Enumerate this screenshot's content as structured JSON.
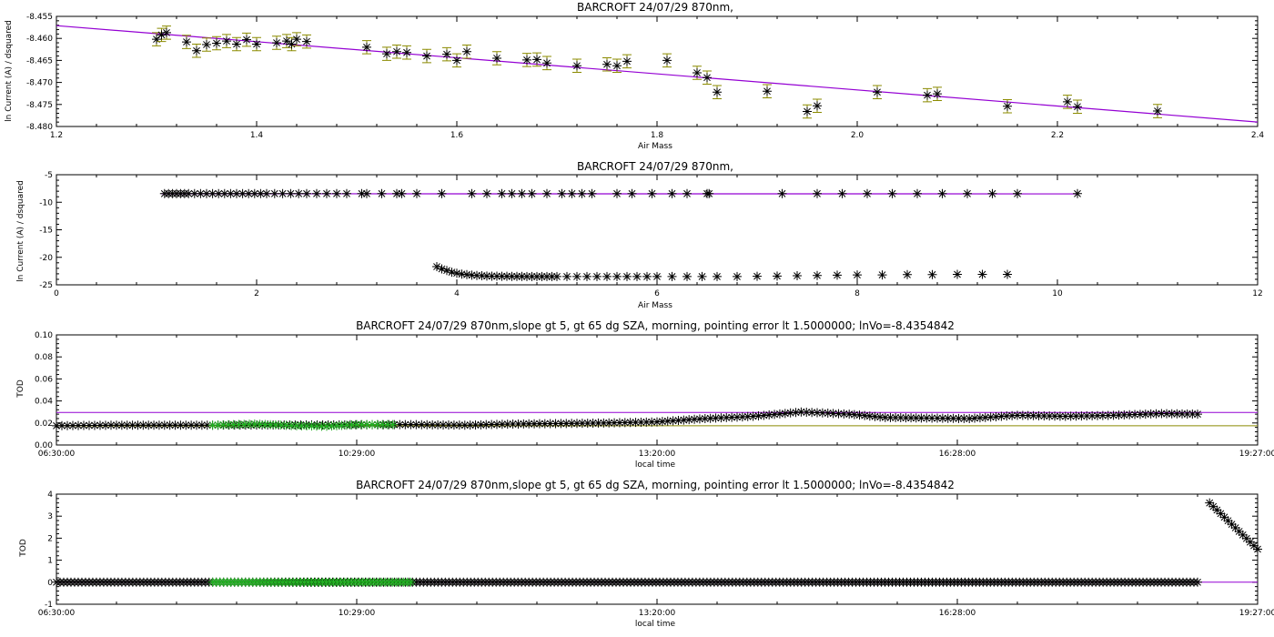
{
  "colors": {
    "axis": "#000000",
    "fit_line": "#9400d3",
    "error_bar": "#8b8b00",
    "marker": "#000000",
    "marker_green": "#22b022"
  },
  "chart_data": [
    {
      "type": "scatter",
      "title": "BARCROFT 24/07/29 870nm,",
      "xlabel": "Air Mass",
      "ylabel": "ln Current (A) / dsquared",
      "xlim": [
        1.2,
        2.4
      ],
      "ylim": [
        -8.48,
        -8.455
      ],
      "x_ticks": [
        1.2,
        1.4,
        1.6,
        1.8,
        2.0,
        2.2,
        2.4
      ],
      "x_tick_labels": [
        "1.2",
        "1.4",
        "1.6",
        "1.8",
        "2.0",
        "2.2",
        "2.4"
      ],
      "y_ticks": [
        -8.48,
        -8.475,
        -8.47,
        -8.465,
        -8.46,
        -8.455
      ],
      "y_tick_labels": [
        "-8.480",
        "-8.475",
        "-8.470",
        "-8.465",
        "-8.460",
        "-8.455"
      ],
      "fit_line": {
        "x": [
          1.2,
          2.4
        ],
        "y": [
          -8.4571,
          -8.479
        ]
      },
      "series": [
        {
          "marker": "asterisk",
          "error": 0.0015,
          "x": [
            1.3,
            1.305,
            1.31,
            1.33,
            1.34,
            1.35,
            1.36,
            1.37,
            1.38,
            1.39,
            1.4,
            1.42,
            1.43,
            1.435,
            1.44,
            1.45,
            1.51,
            1.53,
            1.54,
            1.55,
            1.57,
            1.59,
            1.6,
            1.61,
            1.64,
            1.67,
            1.68,
            1.69,
            1.72,
            1.75,
            1.76,
            1.77,
            1.81,
            1.84,
            1.85,
            1.86,
            1.91,
            1.95,
            1.96,
            2.02,
            2.07,
            2.08,
            2.15,
            2.21,
            2.22,
            2.3
          ],
          "y": [
            -8.4602,
            -8.4592,
            -8.4587,
            -8.4608,
            -8.4628,
            -8.4614,
            -8.4611,
            -8.4606,
            -8.4613,
            -8.4603,
            -8.4613,
            -8.461,
            -8.4606,
            -8.4613,
            -8.4602,
            -8.4607,
            -8.462,
            -8.4635,
            -8.463,
            -8.4632,
            -8.464,
            -8.4636,
            -8.465,
            -8.463,
            -8.4645,
            -8.4649,
            -8.4648,
            -8.4656,
            -8.4662,
            -8.4659,
            -8.4662,
            -8.4652,
            -8.465,
            -8.4678,
            -8.4689,
            -8.4722,
            -8.472,
            -8.4766,
            -8.4753,
            -8.4722,
            -8.4729,
            -8.4726,
            -8.4754,
            -8.4744,
            -8.4755,
            -8.4765
          ]
        }
      ]
    },
    {
      "type": "scatter",
      "title": "BARCROFT 24/07/29 870nm,",
      "xlabel": "Air Mass",
      "ylabel": "ln Current (A) / dsquared",
      "xlim": [
        0,
        12
      ],
      "ylim": [
        -25,
        -5
      ],
      "x_ticks": [
        0,
        2,
        4,
        6,
        8,
        10,
        12
      ],
      "x_tick_labels": [
        "0",
        "2",
        "4",
        "6",
        "8",
        "10",
        "12"
      ],
      "y_ticks": [
        -25,
        -20,
        -15,
        -10,
        -5
      ],
      "y_tick_labels": [
        "-25",
        "-20",
        "-15",
        "-10",
        "-5"
      ],
      "fit_line": {
        "x": [
          1.05,
          10.2
        ],
        "y": [
          -8.46,
          -8.48
        ]
      },
      "series": [
        {
          "marker": "asterisk",
          "x": [
            1.08,
            1.12,
            1.16,
            1.2,
            1.24,
            1.28,
            1.32,
            1.38,
            1.44,
            1.5,
            1.56,
            1.62,
            1.68,
            1.74,
            1.8,
            1.86,
            1.92,
            1.98,
            2.04,
            2.1,
            2.18,
            2.26,
            2.34,
            2.42,
            2.5,
            2.6,
            2.7,
            2.8,
            2.9,
            3.05,
            3.1,
            3.25,
            3.4,
            3.45,
            3.6,
            3.85,
            4.15,
            4.3,
            4.45,
            4.55,
            4.65,
            4.75,
            4.9,
            5.05,
            5.15,
            5.25,
            5.35,
            5.6,
            5.75,
            5.95,
            6.15,
            6.3,
            6.5,
            6.52,
            7.25,
            7.6,
            7.85,
            8.1,
            8.35,
            8.6,
            8.85,
            9.1,
            9.35,
            9.6,
            10.2
          ],
          "y": [
            -8.44,
            -8.44,
            -8.44,
            -8.44,
            -8.44,
            -8.44,
            -8.44,
            -8.44,
            -8.44,
            -8.44,
            -8.44,
            -8.44,
            -8.44,
            -8.44,
            -8.44,
            -8.44,
            -8.44,
            -8.44,
            -8.44,
            -8.44,
            -8.44,
            -8.44,
            -8.44,
            -8.44,
            -8.44,
            -8.44,
            -8.44,
            -8.44,
            -8.44,
            -8.44,
            -8.44,
            -8.44,
            -8.44,
            -8.44,
            -8.44,
            -8.44,
            -8.44,
            -8.44,
            -8.44,
            -8.44,
            -8.44,
            -8.44,
            -8.44,
            -8.44,
            -8.44,
            -8.44,
            -8.44,
            -8.44,
            -8.44,
            -8.44,
            -8.44,
            -8.44,
            -8.44,
            -8.44,
            -8.44,
            -8.44,
            -8.44,
            -8.44,
            -8.44,
            -8.44,
            -8.44,
            -8.44,
            -8.44,
            -8.44,
            -8.44
          ]
        },
        {
          "marker": "asterisk",
          "x": [
            3.8,
            3.85,
            3.9,
            3.95,
            4.0,
            4.05,
            4.1,
            4.15,
            4.2,
            4.25,
            4.3,
            4.35,
            4.4,
            4.45,
            4.5,
            4.55,
            4.6,
            4.65,
            4.7,
            4.75,
            4.8,
            4.85,
            4.9,
            4.95,
            5.0,
            5.1,
            5.2,
            5.3,
            5.4,
            5.5,
            5.6,
            5.7,
            5.8,
            5.9,
            6.0,
            6.15,
            6.3,
            6.45,
            6.6,
            6.8,
            7.0,
            7.2,
            7.4,
            7.6,
            7.8,
            8.0,
            8.25,
            8.5,
            8.75,
            9.0,
            9.25,
            9.5
          ],
          "y": [
            -21.7,
            -22.1,
            -22.4,
            -22.7,
            -22.9,
            -23.05,
            -23.15,
            -23.25,
            -23.3,
            -23.35,
            -23.4,
            -23.42,
            -23.44,
            -23.45,
            -23.46,
            -23.47,
            -23.48,
            -23.48,
            -23.49,
            -23.49,
            -23.5,
            -23.5,
            -23.5,
            -23.5,
            -23.5,
            -23.5,
            -23.5,
            -23.5,
            -23.5,
            -23.5,
            -23.5,
            -23.5,
            -23.5,
            -23.5,
            -23.5,
            -23.5,
            -23.5,
            -23.5,
            -23.5,
            -23.5,
            -23.45,
            -23.4,
            -23.35,
            -23.3,
            -23.25,
            -23.2,
            -23.2,
            -23.15,
            -23.15,
            -23.1,
            -23.1,
            -23.1
          ]
        }
      ]
    },
    {
      "type": "scatter",
      "title": "BARCROFT 24/07/29 870nm,slope gt 5, gt 65 dg SZA, morning, pointing error lt 1.5000000; lnVo=-8.4354842",
      "xlabel": "local time",
      "ylabel": "TOD",
      "xlim": [
        0,
        1
      ],
      "ylim": [
        0.0,
        0.1
      ],
      "x_ticks": [
        0,
        0.25,
        0.5,
        0.75,
        1.0
      ],
      "x_tick_labels": [
        "06:30:00",
        "10:29:00",
        "13:20:00",
        "16:28:00",
        "19:27:00"
      ],
      "y_ticks": [
        0.0,
        0.02,
        0.04,
        0.06,
        0.08,
        0.1
      ],
      "y_tick_labels": [
        "0.00",
        "0.02",
        "0.04",
        "0.06",
        "0.08",
        "0.10"
      ],
      "ref_lines": [
        {
          "y": 0.0295,
          "color": "#9400d3"
        },
        {
          "y": 0.0175,
          "color": "#8b8b00"
        }
      ],
      "series": [
        {
          "marker": "asterisk",
          "x": [
            0.0,
            0.05,
            0.13,
            0.295,
            0.34,
            0.38,
            0.42,
            0.46,
            0.5,
            0.54,
            0.58,
            0.62,
            0.66,
            0.69,
            0.72,
            0.76,
            0.8,
            0.84,
            0.88,
            0.92,
            0.95
          ],
          "y": [
            0.0175,
            0.018,
            0.018,
            0.0185,
            0.018,
            0.019,
            0.0195,
            0.02,
            0.021,
            0.024,
            0.026,
            0.03,
            0.028,
            0.025,
            0.0245,
            0.024,
            0.027,
            0.026,
            0.027,
            0.0285,
            0.028
          ]
        },
        {
          "marker": "asterisk-green",
          "x": [
            0.13,
            0.165,
            0.2,
            0.225,
            0.25,
            0.28
          ],
          "y": [
            0.018,
            0.019,
            0.0175,
            0.017,
            0.0185,
            0.0185
          ]
        }
      ]
    },
    {
      "type": "scatter",
      "title": "BARCROFT 24/07/29 870nm,slope gt 5, gt 65 dg SZA, morning, pointing error lt 1.5000000; lnVo=-8.4354842",
      "xlabel": "local time",
      "ylabel": "TOD",
      "xlim": [
        0,
        1
      ],
      "ylim": [
        -1,
        4
      ],
      "x_ticks": [
        0,
        0.25,
        0.5,
        0.75,
        1.0
      ],
      "x_tick_labels": [
        "06:30:00",
        "10:29:00",
        "13:20:00",
        "16:28:00",
        "19:27:00"
      ],
      "y_ticks": [
        -1,
        0,
        1,
        2,
        3,
        4
      ],
      "y_tick_labels": [
        "-1",
        "0",
        "1",
        "2",
        "3",
        "4"
      ],
      "ref_lines": [
        {
          "y": 0.0,
          "color": "#9400d3"
        }
      ],
      "series": [
        {
          "marker": "asterisk",
          "x": [
            0.0,
            0.95
          ],
          "y": [
            0.0,
            0.0
          ]
        },
        {
          "marker": "asterisk-green",
          "x": [
            0.13,
            0.295
          ],
          "y": [
            0.0,
            0.0
          ]
        },
        {
          "marker": "asterisk",
          "x": [
            0.96,
            1.0
          ],
          "y": [
            3.6,
            1.5
          ]
        }
      ]
    }
  ]
}
